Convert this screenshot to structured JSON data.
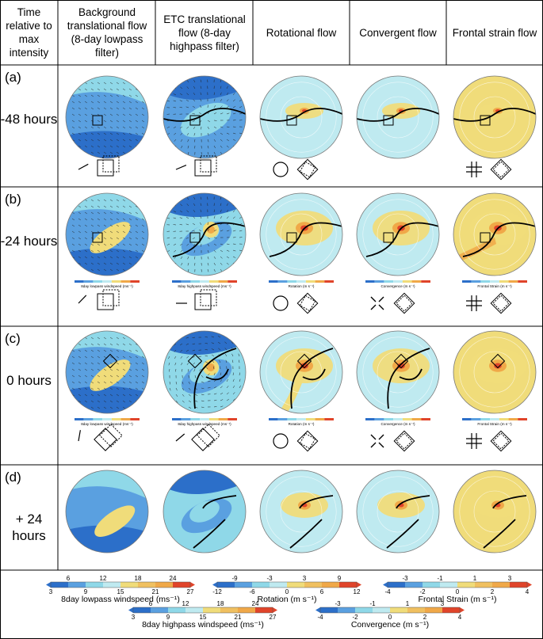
{
  "headers": [
    "Time relative to  max intensity",
    "Background translational flow (8-day lowpass filter)",
    "ETC translational flow (8-day highpass filter)",
    "Rotational flow",
    "Convergent flow",
    "Frontal strain flow"
  ],
  "rows": [
    {
      "letter": "(a)",
      "time": "-48 hours"
    },
    {
      "letter": "(b)",
      "time": "-24 hours"
    },
    {
      "letter": "(c)",
      "time": "0 hours"
    },
    {
      "letter": "(d)",
      "time": "+ 24 hours"
    }
  ],
  "small_colorbar_labels": [
    "8day lowpass windspeed (ms⁻¹)",
    "8day highpass windspeed (ms⁻¹)",
    "Rotation (m s⁻¹)",
    "Convergence (m s⁻¹)",
    "Frontal Strain (m s⁻¹)"
  ],
  "legend": {
    "lowpass": {
      "label": "8day lowpass windspeed (ms⁻¹)",
      "top_ticks": [
        "6",
        "12",
        "18",
        "24"
      ],
      "bottom_ticks": [
        "3",
        "9",
        "15",
        "21",
        "27"
      ]
    },
    "highpass": {
      "label": "8day highpass windspeed (ms⁻¹)",
      "top_ticks": [
        "6",
        "12",
        "18",
        "24"
      ],
      "bottom_ticks": [
        "3",
        "9",
        "15",
        "21",
        "27"
      ]
    },
    "rotation": {
      "label": "Rotation (m s⁻¹)",
      "top_ticks": [
        "-9",
        "-3",
        "3",
        "9"
      ],
      "bottom_ticks": [
        "-12",
        "-6",
        "0",
        "6",
        "12"
      ]
    },
    "convergence": {
      "label": "Convergence (m s⁻¹)",
      "top_ticks": [
        "-3",
        "-1",
        "1",
        "3"
      ],
      "bottom_ticks": [
        "-4",
        "-2",
        "0",
        "2",
        "4"
      ]
    },
    "strain": {
      "label": "Frontal Strain (m s⁻¹)",
      "top_ticks": [
        "-3",
        "-1",
        "1",
        "3"
      ],
      "bottom_ticks": [
        "-4",
        "-2",
        "0",
        "2",
        "4"
      ]
    }
  },
  "colors": {
    "blue_dark": "#2c6fc9",
    "blue_mid": "#5aa0e0",
    "cyan": "#8fd8e8",
    "cyan_light": "#bfeaf0",
    "yellow": "#f0dc7a",
    "orange": "#f0a848",
    "red": "#e0442a"
  }
}
